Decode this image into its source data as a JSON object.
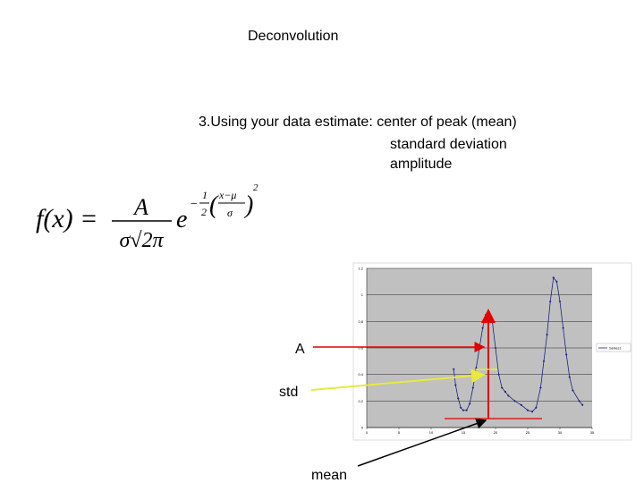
{
  "slide": {
    "title": "Deconvolution",
    "lines": [
      "3.Using your data estimate:  center of peak (mean)",
      "standard deviation",
      "amplitude"
    ],
    "formula": {
      "lhs": "f(x) =",
      "numerator": "A",
      "denominator": "σ√2π",
      "base": "e",
      "exp_sign": "−",
      "exp_num": "1",
      "exp_den": "2",
      "inner_num": "x−μ",
      "inner_den": "σ",
      "power": "2"
    },
    "annotations": {
      "amplitude": "A",
      "std": "std",
      "mean": "mean"
    }
  },
  "chart_data": {
    "type": "line",
    "x": [
      13.5,
      13.8,
      14.2,
      14.6,
      15,
      15.5,
      16,
      16.5,
      17,
      17.5,
      18,
      18.5,
      19,
      19.5,
      20,
      20.5,
      21,
      21.5,
      22,
      23,
      24,
      25,
      25.7,
      26.3,
      27,
      27.5,
      28,
      28.5,
      29,
      29.5,
      30,
      30.5,
      31,
      31.5,
      32,
      33,
      33.5
    ],
    "series": [
      {
        "name": "Series1",
        "color": "#1a237e",
        "values": [
          0.44,
          0.32,
          0.22,
          0.15,
          0.13,
          0.13,
          0.18,
          0.3,
          0.45,
          0.6,
          0.75,
          0.85,
          0.87,
          0.8,
          0.6,
          0.4,
          0.3,
          0.27,
          0.24,
          0.2,
          0.17,
          0.13,
          0.12,
          0.15,
          0.3,
          0.5,
          0.7,
          0.95,
          1.13,
          1.1,
          0.95,
          0.75,
          0.55,
          0.38,
          0.28,
          0.2,
          0.17
        ]
      }
    ],
    "xlim": [
      0,
      35
    ],
    "xticks": [
      0,
      5,
      10,
      15,
      20,
      25,
      30,
      35
    ],
    "ylim": [
      0,
      1.2
    ],
    "yticks": [
      0,
      0.2,
      0.4,
      0.6,
      0.8,
      1,
      1.2
    ],
    "grid": true,
    "legend": "right"
  }
}
